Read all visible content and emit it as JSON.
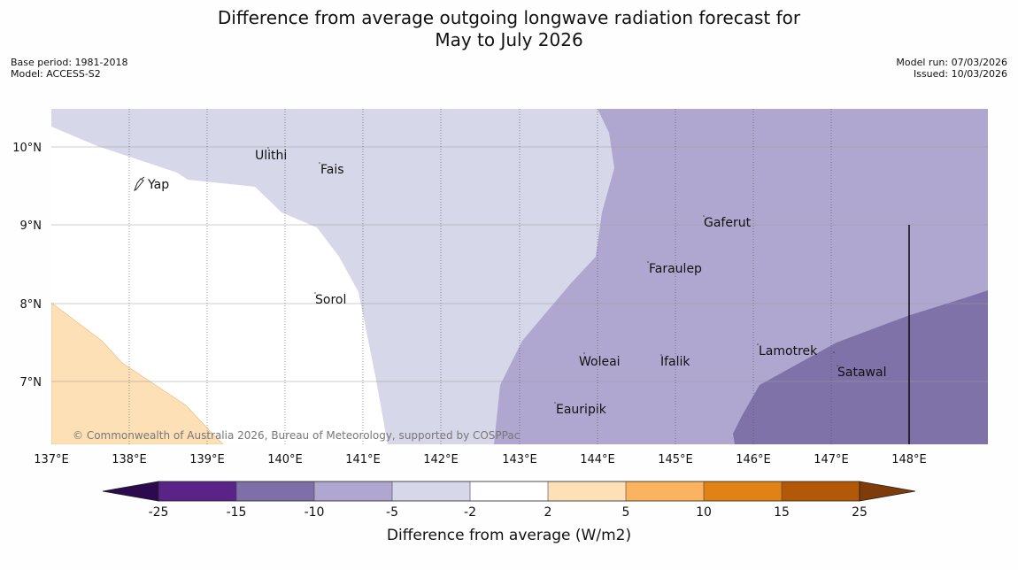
{
  "title_line1": "Difference from average outgoing longwave radiation forecast for",
  "title_line2": "May to July 2026",
  "base_period": "Base period: 1981-2018",
  "model": "Model: ACCESS-S2",
  "model_run": "Model run: 07/03/2026",
  "issued": "Issued: 10/03/2026",
  "copyright": "© Commonwealth of Australia 2026, Bureau of Meteorology, supported by COSPPac",
  "lat_labels": [
    "10°N",
    "9°N",
    "8°N",
    "7°N"
  ],
  "lon_labels": [
    "137°E",
    "138°E",
    "139°E",
    "140°E",
    "141°E",
    "142°E",
    "143°E",
    "144°E",
    "145°E",
    "146°E",
    "147°E",
    "148°E"
  ],
  "places": [
    "Ulithi",
    "Fais",
    "Yap",
    "Gaferut",
    "Faraulep",
    "Sorol",
    "Woleai",
    "Ifalik",
    "Lamotrek",
    "Satawal",
    "Eauripik"
  ],
  "colorbar": {
    "title": "Difference from average (W/m2)",
    "ticks": [
      "-25",
      "-15",
      "-10",
      "-5",
      "-2",
      "2",
      "5",
      "10",
      "15",
      "25"
    ],
    "colors": [
      "#2d0a50",
      "#5a2387",
      "#7f6fa8",
      "#afa7cf",
      "#d7d7ea",
      "#ffffff",
      "#fde0b5",
      "#fbb35f",
      "#e08214",
      "#b35806",
      "#7f3b08"
    ]
  },
  "map_colors": {
    "white": "#ffffff",
    "light_purple": "#d7d7ea",
    "mid_purple": "#afa7cf",
    "dark_purple": "#7f72a9",
    "light_orange": "#fde0b5"
  },
  "chart_data": {
    "type": "map",
    "variable": "Difference from average outgoing longwave radiation",
    "units": "W/m2",
    "lon_range": [
      137,
      149
    ],
    "lat_range": [
      6.2,
      10.5
    ],
    "categories": [
      -25,
      -15,
      -10,
      -5,
      -2,
      2,
      5,
      10,
      15,
      25
    ]
  }
}
